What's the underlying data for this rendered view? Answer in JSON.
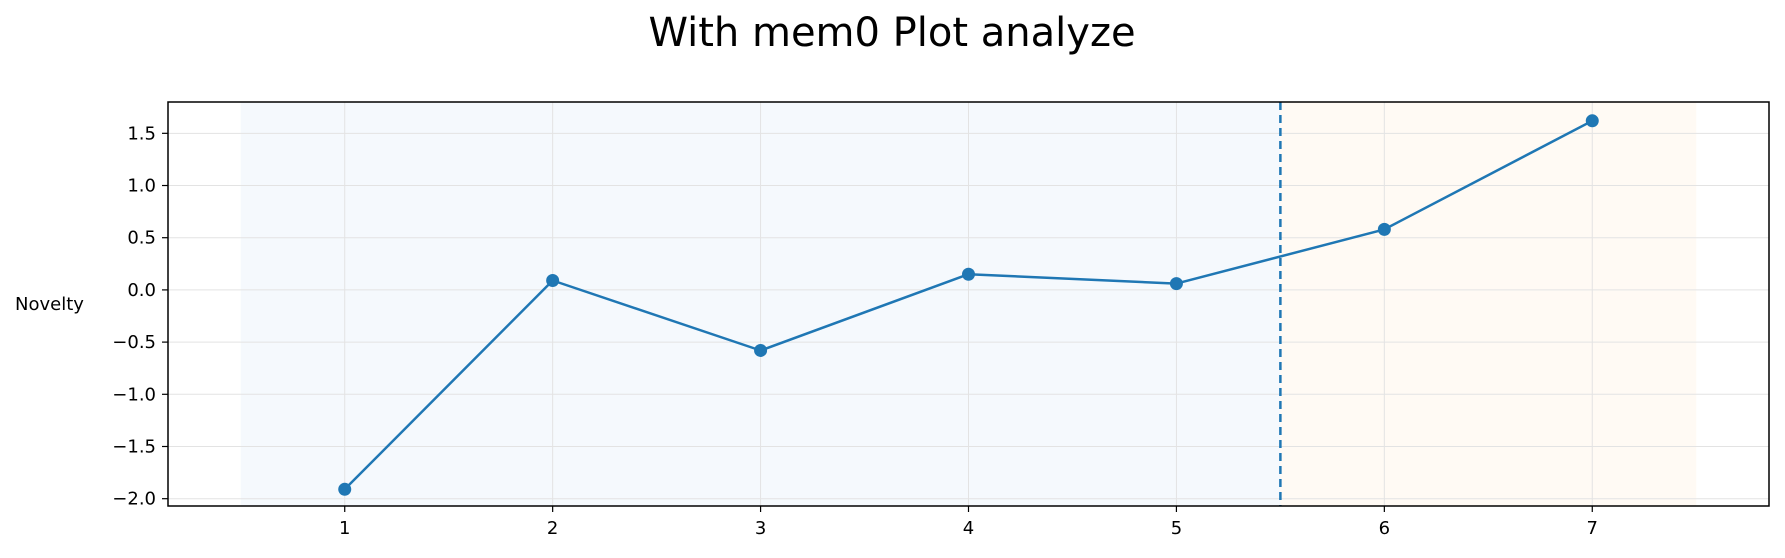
{
  "chart_data": {
    "type": "line",
    "title": "With mem0 Plot analyze",
    "xlabel": "",
    "ylabel": "Novelty",
    "x": [
      1,
      2,
      3,
      4,
      5,
      6,
      7
    ],
    "series": [
      {
        "values": [
          -1.91,
          0.09,
          -0.58,
          0.15,
          0.06,
          0.58,
          1.62
        ],
        "color": "#1f77b4",
        "marker": "circle"
      }
    ],
    "xlim": [
      0.15,
      7.85
    ],
    "ylim": [
      -2.07,
      1.8
    ],
    "x_ticks": [
      1,
      2,
      3,
      4,
      5,
      6,
      7
    ],
    "y_ticks": [
      -2.0,
      -1.5,
      -1.0,
      -0.5,
      0.0,
      0.5,
      1.0,
      1.5
    ],
    "y_tick_labels": [
      "−2.0",
      "−1.5",
      "−1.0",
      "−0.5",
      "0.0",
      "0.5",
      "1.0",
      "1.5"
    ],
    "shaded_regions": [
      {
        "from": 0.5,
        "to": 5.5,
        "color": "#f5f9fd"
      },
      {
        "from": 5.5,
        "to": 7.5,
        "color": "#fffaf4"
      }
    ],
    "vertical_line": {
      "x": 5.5,
      "style": "dashed",
      "color": "#1f77b4"
    },
    "grid": true
  }
}
